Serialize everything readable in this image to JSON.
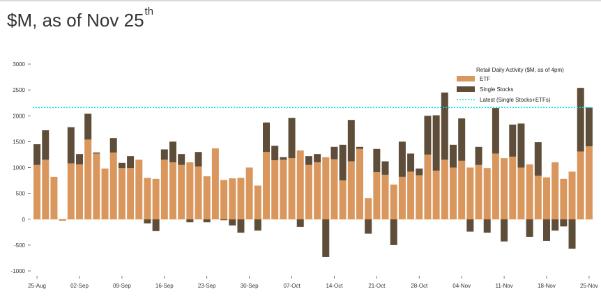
{
  "header": {
    "title_main": "$M, as of Nov 25",
    "title_sup": "th"
  },
  "chart_data": {
    "type": "bar",
    "stacked": true,
    "title": "$M, as of Nov 25th",
    "ylim": [
      -1050,
      3050
    ],
    "yticks": [
      -1000,
      -500,
      0,
      500,
      1000,
      1500,
      2000,
      2500,
      3000
    ],
    "ytick_labels": [
      "-1000",
      "-500",
      "0",
      "500",
      "1000",
      "1500",
      "2000",
      "2500",
      "3000"
    ],
    "xtick_labels": [
      "25-Aug",
      "02-Sep",
      "09-Sep",
      "16-Sep",
      "23-Sep",
      "30-Sep",
      "07-Oct",
      "14-Oct",
      "21-Oct",
      "28-Oct",
      "04-Nov",
      "11-Nov",
      "18-Nov",
      "25-Nov"
    ],
    "xtick_positions": [
      0,
      5,
      10,
      15,
      20,
      25,
      30,
      35,
      40,
      45,
      50,
      55,
      60,
      65
    ],
    "grid": false,
    "legend_title": "Retail Daily Activity ($M, as of 4pm)",
    "legend_placement": "top-right",
    "series": [
      {
        "name": "ETF",
        "color": "#d9975e",
        "values": [
          1050,
          1150,
          820,
          -30,
          1080,
          1060,
          1540,
          1270,
          980,
          1290,
          990,
          990,
          1150,
          800,
          780,
          1150,
          1100,
          1050,
          1100,
          1020,
          830,
          1370,
          760,
          790,
          800,
          1000,
          650,
          1300,
          1140,
          1150,
          1180,
          1330,
          1050,
          1100,
          1200,
          1160,
          750,
          1120,
          1360,
          410,
          910,
          860,
          670,
          820,
          920,
          850,
          1250,
          940,
          1150,
          1000,
          1130,
          1000,
          1050,
          990,
          1270,
          1180,
          1210,
          1000,
          1060,
          840,
          810,
          1100,
          780,
          920,
          1310,
          1410
        ]
      },
      {
        "name": "Single Stocks",
        "color": "#5e4d38",
        "values": [
          400,
          570,
          0,
          0,
          700,
          200,
          500,
          20,
          0,
          280,
          100,
          230,
          0,
          -80,
          -230,
          200,
          400,
          210,
          -60,
          280,
          -60,
          0,
          -20,
          -120,
          -260,
          0,
          -220,
          570,
          280,
          50,
          780,
          -150,
          170,
          160,
          -730,
          240,
          690,
          800,
          40,
          -280,
          450,
          260,
          -500,
          680,
          350,
          130,
          750,
          1070,
          1300,
          440,
          820,
          -240,
          350,
          -260,
          880,
          -430,
          620,
          850,
          -340,
          650,
          -420,
          -220,
          -140,
          -570,
          1230,
          750
        ]
      }
    ],
    "reference_line": {
      "name": "Latest (Single Stocks+ETFs)",
      "value": 2160,
      "color": "#00e5e5"
    }
  }
}
